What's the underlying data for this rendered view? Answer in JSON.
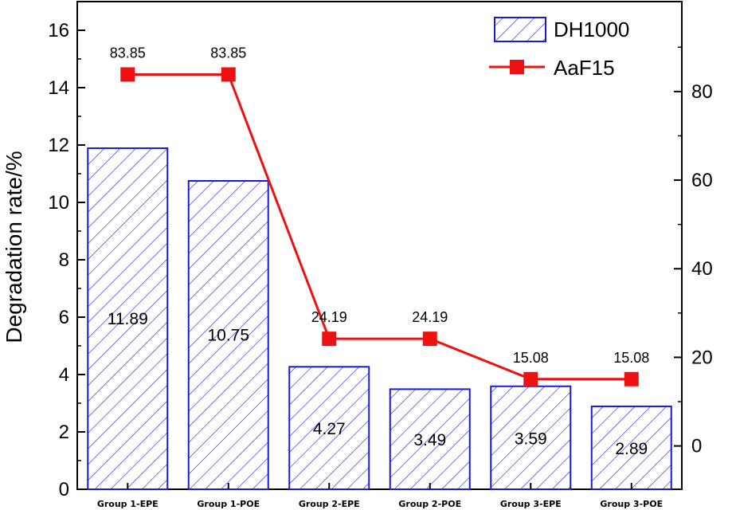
{
  "chart_data": {
    "type": "bar+line",
    "categories": [
      "Group 1-EPE",
      "Group 1-POE",
      "Group 2-EPE",
      "Group 2-POE",
      "Group 3-EPE",
      "Group 3-POE"
    ],
    "series": [
      {
        "name": "DH1000",
        "chart_type": "bar",
        "axis": "left",
        "values": [
          11.89,
          10.75,
          4.27,
          3.49,
          3.59,
          2.89
        ],
        "labels": [
          "11.89",
          "10.75",
          "4.27",
          "3.49",
          "3.59",
          "2.89"
        ],
        "color": "#1a1adb",
        "pattern": "diagonal-hatch"
      },
      {
        "name": "AaF15",
        "chart_type": "line",
        "axis": "right",
        "values": [
          83.85,
          83.85,
          24.19,
          24.19,
          15.08,
          15.08
        ],
        "labels": [
          "83.85",
          "83.85",
          "24.19",
          "24.19",
          "15.08",
          "15.08"
        ],
        "color": "#ee1111",
        "marker": "square"
      }
    ],
    "ylabel": "Degradation rate/%",
    "xlabel": "",
    "y_left": {
      "ylim": [
        0,
        17
      ],
      "ticks": [
        0,
        2,
        4,
        6,
        8,
        10,
        12,
        14,
        16
      ]
    },
    "y_right": {
      "ylim": [
        -9.78,
        100.3
      ],
      "ticks": [
        0,
        20,
        40,
        60,
        80
      ]
    },
    "legend": {
      "position": "top-right"
    },
    "grid": false
  }
}
